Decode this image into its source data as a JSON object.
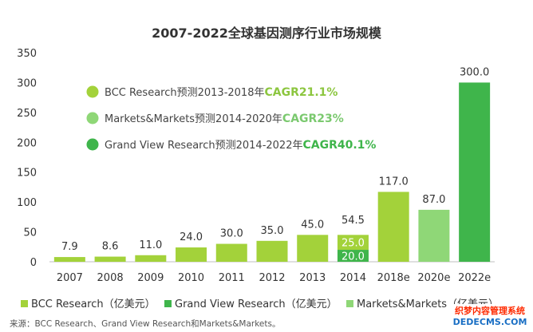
{
  "chart_data": {
    "type": "bar",
    "title": "2007-2022全球基因测序行业市场规模",
    "categories": [
      "2007",
      "2008",
      "2009",
      "2010",
      "2011",
      "2012",
      "2013",
      "2014",
      "2018e",
      "2020e",
      "2022e"
    ],
    "values": [
      7.9,
      8.6,
      11.0,
      24.0,
      30.0,
      35.0,
      45.0,
      54.5,
      117.0,
      87.0,
      300.0
    ],
    "value_labels": [
      "7.9",
      "8.6",
      "11.0",
      "24.0",
      "30.0",
      "35.0",
      "45.0",
      "54.5",
      "117.0",
      "87.0",
      "300.0"
    ],
    "series_index": [
      0,
      0,
      0,
      0,
      0,
      0,
      0,
      0,
      0,
      2,
      1
    ],
    "stacked_2014": [
      {
        "value": 20.0,
        "label": "20.0",
        "series": 1
      },
      {
        "value": 25.0,
        "label": "25.0",
        "series": 0
      }
    ],
    "ylim": [
      0,
      350
    ],
    "yticks": [
      0,
      50,
      100,
      150,
      200,
      250,
      300,
      350
    ],
    "ytick_labels": [
      "0",
      "50",
      "100",
      "150",
      "200",
      "250",
      "300",
      "350"
    ],
    "series": [
      {
        "name": "BCC Research（亿美元）",
        "color": "#a3d23a"
      },
      {
        "name": "Grand View Research（亿美元）",
        "color": "#3fb54b"
      },
      {
        "name": "Markets&Markets（亿美元）",
        "color": "#8fd777"
      }
    ],
    "annotations": [
      {
        "text": "BCC Research预测2013-2018年",
        "cagr": "CAGR21.1%",
        "dot_color": "#a3d23a",
        "cagr_color": "#8cc63f"
      },
      {
        "text": "Markets&Markets预测2014-2020年",
        "cagr": "CAGR23%",
        "dot_color": "#8fd777",
        "cagr_color": "#7bc96f"
      },
      {
        "text": "Grand View Research预测2014-2022年",
        "cagr": "CAGR40.1%",
        "dot_color": "#3fb54b",
        "cagr_color": "#3fb54b"
      }
    ],
    "grid": false,
    "legend_position": "bottom",
    "source": "来源：BCC Research、Grand View Research和Markets&Markets。",
    "watermark": {
      "line1": "织梦内容管理系统",
      "line2": "DEDECMS.COM",
      "color1": "#ff2a00",
      "color2": "#1a6fc4"
    }
  }
}
